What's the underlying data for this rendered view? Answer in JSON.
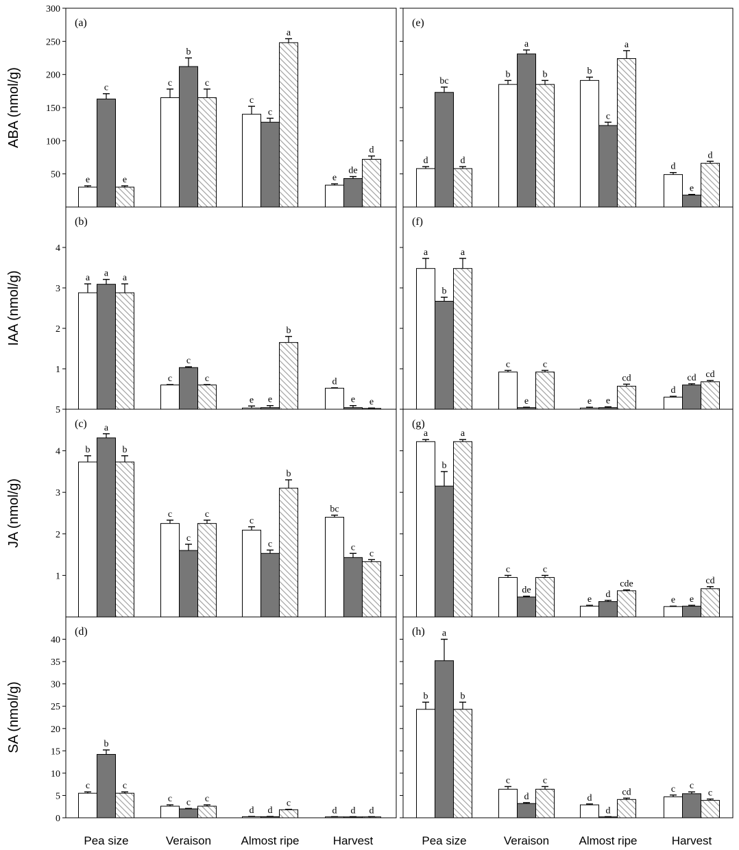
{
  "chart_data": {
    "type": "bar",
    "categories": [
      "Pea size",
      "Veraison",
      "Almost ripe",
      "Harvest"
    ],
    "colors": {
      "series1": "#ffffff",
      "series2": "#777777",
      "series3_hatch": "#9a9a9a"
    },
    "rows": [
      {
        "ylabel": "ABA (nmol/g)",
        "ylim": [
          0,
          300
        ],
        "yticks": [
          50,
          100,
          150,
          200,
          250,
          300
        ]
      },
      {
        "ylabel": "IAA (nmol/g)",
        "ylim": [
          0,
          5
        ],
        "yticks": [
          1,
          2,
          3,
          4
        ]
      },
      {
        "ylabel": "JA (nmol/g)",
        "ylim": [
          0,
          5
        ],
        "yticks": [
          1,
          2,
          3,
          4,
          5
        ]
      },
      {
        "ylabel": "SA (nmol/g)",
        "ylim": [
          0,
          45
        ],
        "yticks": [
          0,
          5,
          10,
          15,
          20,
          25,
          30,
          35,
          40
        ]
      }
    ],
    "panels": [
      {
        "label": "(a)",
        "row": 0,
        "col": 0,
        "values": [
          [
            30,
            163,
            30
          ],
          [
            165,
            212,
            165
          ],
          [
            140,
            128,
            248
          ],
          [
            33,
            43,
            72
          ]
        ],
        "errors": [
          [
            2,
            8,
            2
          ],
          [
            13,
            13,
            13
          ],
          [
            12,
            6,
            6
          ],
          [
            2,
            3,
            5
          ]
        ],
        "letters": [
          [
            "e",
            "c",
            "e"
          ],
          [
            "c",
            "b",
            "c"
          ],
          [
            "c",
            "c",
            "a"
          ],
          [
            "e",
            "de",
            "d"
          ]
        ]
      },
      {
        "label": "(e)",
        "row": 0,
        "col": 1,
        "values": [
          [
            58,
            173,
            58
          ],
          [
            185,
            231,
            185
          ],
          [
            191,
            123,
            224
          ],
          [
            49,
            18,
            66
          ]
        ],
        "errors": [
          [
            3,
            8,
            3
          ],
          [
            6,
            6,
            6
          ],
          [
            5,
            5,
            12
          ],
          [
            3,
            1,
            3
          ]
        ],
        "letters": [
          [
            "d",
            "bc",
            "d"
          ],
          [
            "b",
            "a",
            "b"
          ],
          [
            "b",
            "c",
            "a"
          ],
          [
            "d",
            "e",
            "d"
          ]
        ]
      },
      {
        "label": "(b)",
        "row": 1,
        "col": 0,
        "values": [
          [
            2.88,
            3.09,
            2.88
          ],
          [
            0.6,
            1.03,
            0.6
          ],
          [
            0.03,
            0.04,
            1.65
          ],
          [
            0.52,
            0.04,
            0.02
          ]
        ],
        "errors": [
          [
            0.22,
            0.12,
            0.22
          ],
          [
            0.01,
            0.02,
            0.01
          ],
          [
            0.05,
            0.05,
            0.15
          ],
          [
            0.01,
            0.05,
            0.01
          ]
        ],
        "letters": [
          [
            "a",
            "a",
            "a"
          ],
          [
            "c",
            "c",
            "c"
          ],
          [
            "e",
            "e",
            "b"
          ],
          [
            "d",
            "e",
            "e"
          ]
        ]
      },
      {
        "label": "(f)",
        "row": 1,
        "col": 1,
        "values": [
          [
            3.48,
            2.67,
            3.48
          ],
          [
            0.92,
            0.04,
            0.92
          ],
          [
            0.03,
            0.04,
            0.57
          ],
          [
            0.3,
            0.6,
            0.68
          ]
        ],
        "errors": [
          [
            0.25,
            0.1,
            0.25
          ],
          [
            0.04,
            0.01,
            0.04
          ],
          [
            0.02,
            0.02,
            0.05
          ],
          [
            0.02,
            0.03,
            0.03
          ]
        ],
        "letters": [
          [
            "a",
            "b",
            "a"
          ],
          [
            "c",
            "e",
            "c"
          ],
          [
            "e",
            "e",
            "cd"
          ],
          [
            "d",
            "cd",
            "cd"
          ]
        ]
      },
      {
        "label": "(c)",
        "row": 2,
        "col": 0,
        "values": [
          [
            3.73,
            4.31,
            3.73
          ],
          [
            2.25,
            1.6,
            2.25
          ],
          [
            2.09,
            1.53,
            3.1
          ],
          [
            2.4,
            1.43,
            1.33
          ]
        ],
        "errors": [
          [
            0.15,
            0.1,
            0.15
          ],
          [
            0.08,
            0.15,
            0.08
          ],
          [
            0.08,
            0.08,
            0.2
          ],
          [
            0.05,
            0.1,
            0.05
          ]
        ],
        "letters": [
          [
            "b",
            "a",
            "b"
          ],
          [
            "c",
            "c",
            "c"
          ],
          [
            "c",
            "c",
            "b"
          ],
          [
            "bc",
            "c",
            "c"
          ]
        ]
      },
      {
        "label": "(g)",
        "row": 2,
        "col": 1,
        "values": [
          [
            4.22,
            3.15,
            4.22
          ],
          [
            0.95,
            0.48,
            0.95
          ],
          [
            0.26,
            0.37,
            0.63
          ],
          [
            0.25,
            0.26,
            0.68
          ]
        ],
        "errors": [
          [
            0.05,
            0.35,
            0.05
          ],
          [
            0.05,
            0.02,
            0.05
          ],
          [
            0.02,
            0.03,
            0.02
          ],
          [
            0.01,
            0.02,
            0.05
          ]
        ],
        "letters": [
          [
            "a",
            "b",
            "a"
          ],
          [
            "c",
            "de",
            "c"
          ],
          [
            "e",
            "d",
            "cde"
          ],
          [
            "e",
            "e",
            "cd"
          ]
        ]
      },
      {
        "label": "(d)",
        "row": 3,
        "col": 0,
        "values": [
          [
            5.5,
            14.2,
            5.5
          ],
          [
            2.6,
            2.0,
            2.6
          ],
          [
            0.25,
            0.25,
            1.8
          ],
          [
            0.2,
            0.2,
            0.2
          ]
        ],
        "errors": [
          [
            0.3,
            1.0,
            0.3
          ],
          [
            0.3,
            0.1,
            0.3
          ],
          [
            0.05,
            0.05,
            0.1
          ],
          [
            0.05,
            0.05,
            0.05
          ]
        ],
        "letters": [
          [
            "c",
            "b",
            "c"
          ],
          [
            "c",
            "c",
            "c"
          ],
          [
            "d",
            "d",
            "c"
          ],
          [
            "d",
            "d",
            "d"
          ]
        ]
      },
      {
        "label": "(h)",
        "row": 3,
        "col": 1,
        "values": [
          [
            24.3,
            35.2,
            24.3
          ],
          [
            6.4,
            3.2,
            6.4
          ],
          [
            2.9,
            0.2,
            4.1
          ],
          [
            4.7,
            5.4,
            3.9
          ]
        ],
        "errors": [
          [
            1.6,
            4.8,
            1.6
          ],
          [
            0.6,
            0.2,
            0.6
          ],
          [
            0.2,
            0.05,
            0.3
          ],
          [
            0.4,
            0.4,
            0.3
          ]
        ],
        "letters": [
          [
            "b",
            "a",
            "b"
          ],
          [
            "c",
            "d",
            "c"
          ],
          [
            "d",
            "d",
            "cd"
          ],
          [
            "c",
            "c",
            "c"
          ]
        ]
      }
    ]
  }
}
